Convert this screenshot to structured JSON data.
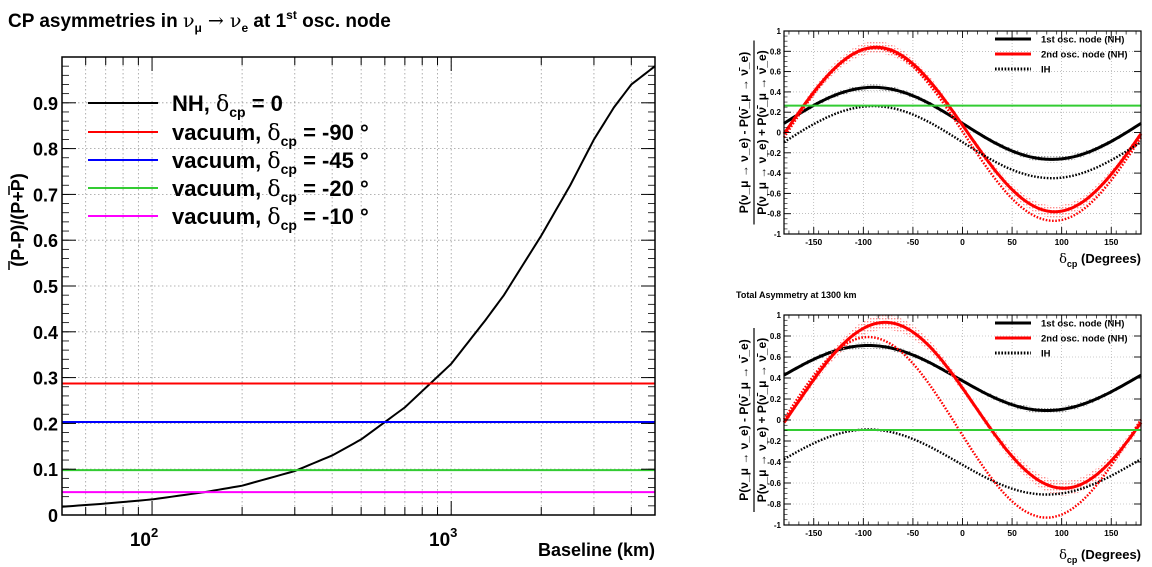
{
  "chart_data": [
    {
      "type": "line",
      "title": {
        "pre": "CP asymmetries in ",
        "nu": "ν",
        "mu": "μ",
        "arrow": " → ",
        "nu2": "ν",
        "e": "e",
        "at": " at 1",
        "st": "st",
        "post": " osc. node"
      },
      "xlabel": "Baseline (km)",
      "ylabel": "(P-P)/(P+P)",
      "xscale": "log",
      "xlim": [
        50,
        4800
      ],
      "ylim": [
        0,
        1.0
      ],
      "grid": true,
      "x_ticks": [
        {
          "base": "10",
          "exp": "2",
          "value": 100
        },
        {
          "base": "10",
          "exp": "3",
          "value": 1000
        }
      ],
      "y_ticks": [
        "0",
        "0.1",
        "0.2",
        "0.3",
        "0.4",
        "0.5",
        "0.6",
        "0.7",
        "0.8",
        "0.9"
      ],
      "y_tick_values": [
        0,
        0.1,
        0.2,
        0.3,
        0.4,
        0.5,
        0.6,
        0.7,
        0.8,
        0.9
      ],
      "legend_position": "upper-left",
      "series": [
        {
          "name_pre": "NH, ",
          "delta": "δ",
          "sub": "cp",
          "name_post": " = 0",
          "color": "#000000",
          "kind": "curve",
          "x": [
            50,
            70,
            100,
            150,
            200,
            300,
            400,
            500,
            700,
            1000,
            1300,
            1500,
            2000,
            2500,
            3000,
            3500,
            4000,
            4800
          ],
          "y": [
            0.018,
            0.025,
            0.034,
            0.05,
            0.064,
            0.096,
            0.13,
            0.165,
            0.235,
            0.33,
            0.425,
            0.48,
            0.61,
            0.72,
            0.82,
            0.89,
            0.94,
            0.98
          ]
        },
        {
          "name_pre": "vacuum, ",
          "delta": "δ",
          "sub": "cp",
          "name_post": " = -90 °",
          "color": "#ff0000",
          "kind": "const",
          "y": 0.287
        },
        {
          "name_pre": "vacuum, ",
          "delta": "δ",
          "sub": "cp",
          "name_post": " = -45 °",
          "color": "#0000ff",
          "kind": "const",
          "y": 0.203
        },
        {
          "name_pre": "vacuum, ",
          "delta": "δ",
          "sub": "cp",
          "name_post": " = -20 °",
          "color": "#33cc33",
          "kind": "const",
          "y": 0.098
        },
        {
          "name_pre": "vacuum, ",
          "delta": "δ",
          "sub": "cp",
          "name_post": " = -10 °",
          "color": "#ff00ff",
          "kind": "const",
          "y": 0.05
        }
      ]
    },
    {
      "type": "line",
      "title": "",
      "xlabel": {
        "delta": "δ",
        "sub": "cp",
        "post": " (Degrees)"
      },
      "ylabel": {
        "num": "P(ν_μ → ν_e) - P(ν̄_μ → ν̄_e)",
        "den": "P(ν_μ → ν_e) + P(ν̄_μ → ν̄_e)"
      },
      "xlim": [
        -180,
        180
      ],
      "ylim": [
        -1,
        1
      ],
      "grid": true,
      "x_ticks": [
        "-150",
        "-100",
        "-50",
        "0",
        "50",
        "100",
        "150"
      ],
      "x_tick_values": [
        -150,
        -100,
        -50,
        0,
        50,
        100,
        150
      ],
      "y_ticks": [
        "-1",
        "-0.8",
        "-0.6",
        "-0.4",
        "-0.2",
        "0",
        "0.2",
        "0.4",
        "0.6",
        "0.8",
        "1"
      ],
      "y_tick_values": [
        -1,
        -0.8,
        -0.6,
        -0.4,
        -0.2,
        0,
        0.2,
        0.4,
        0.6,
        0.8,
        1
      ],
      "legend_position": "top-right",
      "legend": [
        "1st osc. node (NH)",
        "2nd osc. node (NH)",
        "IH"
      ],
      "series": [
        {
          "name": "1st osc. node (NH)",
          "color": "#000000",
          "dash": "solid",
          "offset": 0.09,
          "amp": 0.355,
          "phase_deg": -90,
          "band": 0.03
        },
        {
          "name": "2nd osc. node (NH)",
          "color": "#ff0000",
          "dash": "solid",
          "offset": 0.03,
          "amp": 0.81,
          "phase_deg": -87,
          "band": 0.06
        },
        {
          "name": "IH",
          "color": "#000000",
          "dash": "dotted",
          "offset": -0.095,
          "amp": 0.355,
          "phase_deg": -90,
          "band": 0
        },
        {
          "name": "",
          "color": "#ff0000",
          "dash": "dotted",
          "offset": -0.02,
          "amp": 0.85,
          "phase_deg": -88,
          "band": 0
        },
        {
          "name": "",
          "color": "#33cc33",
          "dash": "solid",
          "kind": "const",
          "y": 0.265
        }
      ]
    },
    {
      "type": "line",
      "title": "Total Asymmetry at 1300 km",
      "xlabel": {
        "delta": "δ",
        "sub": "cp",
        "post": " (Degrees)"
      },
      "ylabel": {
        "num": "P(ν_μ → ν_e) - P(ν̄_μ → ν̄_e)",
        "den": "P(ν_μ → ν_e) + P(ν̄_μ → ν̄_e)"
      },
      "xlim": [
        -180,
        180
      ],
      "ylim": [
        -1,
        1
      ],
      "grid": true,
      "x_ticks": [
        "-150",
        "-100",
        "-50",
        "0",
        "50",
        "100",
        "150"
      ],
      "x_tick_values": [
        -150,
        -100,
        -50,
        0,
        50,
        100,
        150
      ],
      "y_ticks": [
        "-1",
        "-0.8",
        "-0.6",
        "-0.4",
        "-0.2",
        "0",
        "0.2",
        "0.4",
        "0.6",
        "0.8",
        "1"
      ],
      "y_tick_values": [
        -1,
        -0.8,
        -0.6,
        -0.4,
        -0.2,
        0,
        0.2,
        0.4,
        0.6,
        0.8,
        1
      ],
      "legend_position": "top-right",
      "legend": [
        "1st osc. node (NH)",
        "2nd osc. node (NH)",
        "IH"
      ],
      "series": [
        {
          "name": "1st osc. node (NH)",
          "color": "#000000",
          "dash": "solid",
          "offset": 0.4,
          "amp": 0.31,
          "phase_deg": -95,
          "band": 0.03
        },
        {
          "name": "2nd osc. node (NH)",
          "color": "#ff0000",
          "dash": "solid",
          "offset": 0.14,
          "amp": 0.79,
          "phase_deg": -78,
          "band": 0.07
        },
        {
          "name": "IH",
          "color": "#000000",
          "dash": "dotted",
          "offset": -0.4,
          "amp": 0.31,
          "phase_deg": -95,
          "band": 0
        },
        {
          "name": "",
          "color": "#ff0000",
          "dash": "dotted",
          "offset": -0.07,
          "amp": 0.86,
          "phase_deg": -95,
          "band": 0
        },
        {
          "name": "",
          "color": "#33cc33",
          "dash": "solid",
          "kind": "const",
          "y": -0.095
        }
      ]
    }
  ]
}
